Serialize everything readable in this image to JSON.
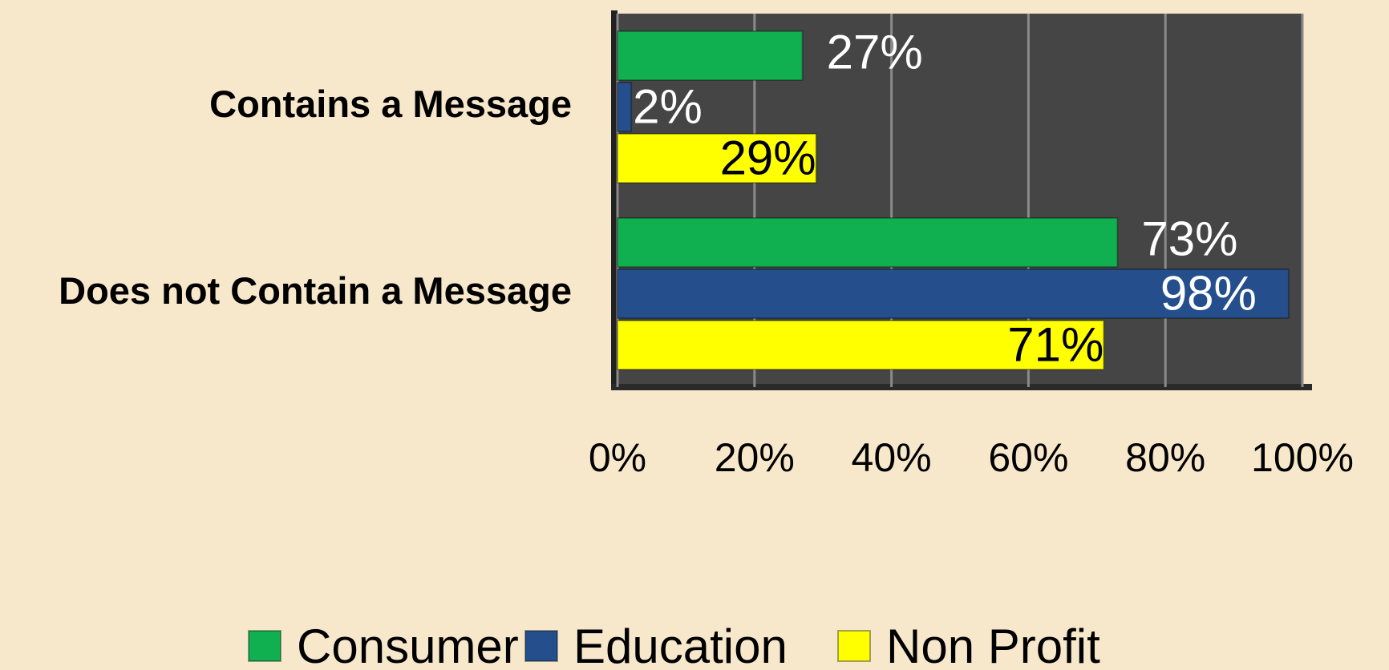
{
  "chart_data": {
    "type": "bar",
    "orientation": "horizontal",
    "categories": [
      "Contains a Message",
      "Does not Contain a Message"
    ],
    "series": [
      {
        "name": "Consumer",
        "color": "#10b050",
        "values": [
          27,
          73
        ],
        "value_labels": [
          "27%",
          "73%"
        ]
      },
      {
        "name": "Education",
        "color": "#254f8c",
        "values": [
          2,
          98
        ],
        "value_labels": [
          "2%",
          "98%"
        ]
      },
      {
        "name": "Non Profit",
        "color": "#ffff00",
        "values": [
          29,
          71
        ],
        "value_labels": [
          "29%",
          "71%"
        ]
      }
    ],
    "xlim": [
      0,
      100
    ],
    "xticks": [
      {
        "value": 0,
        "label": "0%"
      },
      {
        "value": 20,
        "label": "20%"
      },
      {
        "value": 40,
        "label": "40%"
      },
      {
        "value": 60,
        "label": "60%"
      },
      {
        "value": 80,
        "label": "80%"
      },
      {
        "value": 100,
        "label": "100%"
      }
    ],
    "grid": true,
    "legend": "bottom"
  }
}
